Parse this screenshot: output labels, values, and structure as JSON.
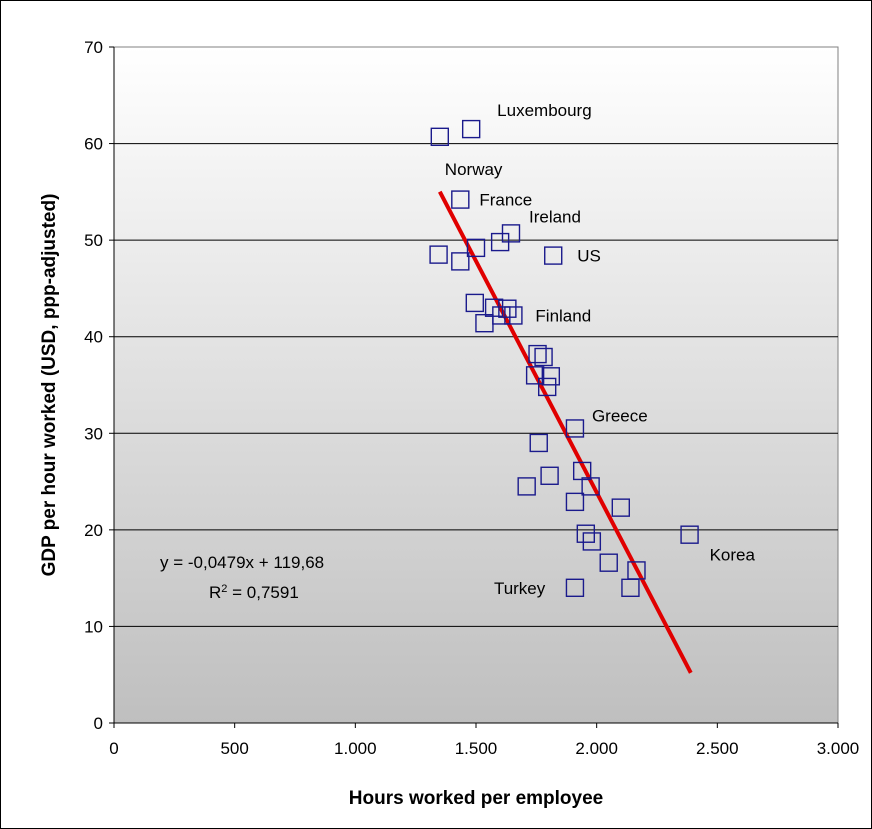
{
  "chart_data": {
    "type": "scatter",
    "title": "",
    "xlabel": "Hours worked per employee",
    "ylabel": "GDP per hour worked (USD, ppp-adjusted)",
    "xlim": [
      0,
      3000
    ],
    "ylim": [
      0,
      70
    ],
    "x_ticks": [
      0,
      500,
      1000,
      1500,
      2000,
      2500,
      3000
    ],
    "x_tick_labels": [
      "0",
      "500",
      "1.000",
      "1.500",
      "2.000",
      "2.500",
      "3.000"
    ],
    "y_ticks": [
      0,
      10,
      20,
      30,
      40,
      50,
      60,
      70
    ],
    "y_tick_labels": [
      "0",
      "10",
      "20",
      "30",
      "40",
      "50",
      "60",
      "70"
    ],
    "grid": "horizontal",
    "legend": "none",
    "background": "vertical gradient, white at top to grey at bottom",
    "marker": "open-square",
    "marker_color": "#1a1a8c",
    "trendline_color": "#e00000",
    "points": [
      {
        "x": 1480,
        "y": 61.5,
        "label": "Luxembourg"
      },
      {
        "x": 1350,
        "y": 60.7,
        "label": "Norway"
      },
      {
        "x": 1435,
        "y": 54.2,
        "label": "France"
      },
      {
        "x": 1645,
        "y": 50.7,
        "label": "Ireland"
      },
      {
        "x": 1600,
        "y": 49.8
      },
      {
        "x": 1500,
        "y": 49.2
      },
      {
        "x": 1345,
        "y": 48.5
      },
      {
        "x": 1435,
        "y": 47.8
      },
      {
        "x": 1820,
        "y": 48.4,
        "label": "US"
      },
      {
        "x": 1495,
        "y": 43.5
      },
      {
        "x": 1575,
        "y": 43.0
      },
      {
        "x": 1630,
        "y": 42.9
      },
      {
        "x": 1605,
        "y": 42.2
      },
      {
        "x": 1655,
        "y": 42.2,
        "label": "Finland"
      },
      {
        "x": 1535,
        "y": 41.4
      },
      {
        "x": 1755,
        "y": 38.2
      },
      {
        "x": 1780,
        "y": 37.9
      },
      {
        "x": 1745,
        "y": 36.0
      },
      {
        "x": 1810,
        "y": 35.9
      },
      {
        "x": 1795,
        "y": 34.8
      },
      {
        "x": 1910,
        "y": 30.5,
        "label": "Greece"
      },
      {
        "x": 1760,
        "y": 29.0
      },
      {
        "x": 1940,
        "y": 26.1
      },
      {
        "x": 1805,
        "y": 25.6
      },
      {
        "x": 1710,
        "y": 24.5
      },
      {
        "x": 1975,
        "y": 24.5
      },
      {
        "x": 1910,
        "y": 22.9
      },
      {
        "x": 2100,
        "y": 22.3
      },
      {
        "x": 1955,
        "y": 19.6
      },
      {
        "x": 1980,
        "y": 18.8
      },
      {
        "x": 2385,
        "y": 19.5,
        "label": "Korea"
      },
      {
        "x": 2050,
        "y": 16.6
      },
      {
        "x": 2165,
        "y": 15.8
      },
      {
        "x": 1910,
        "y": 14.0,
        "label": "Turkey"
      },
      {
        "x": 2140,
        "y": 14.0
      }
    ],
    "trendline": {
      "slope": -0.0479,
      "intercept": 119.68,
      "x_start": 1350,
      "x_end": 2390,
      "equation": "y = -0,0479x + 119,68",
      "r2_prefix": "R",
      "r2_sup": "2",
      "r2_value": " = 0,7591"
    }
  }
}
